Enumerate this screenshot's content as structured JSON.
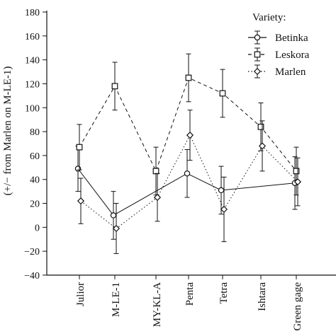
{
  "chart_data": {
    "type": "line",
    "title": "",
    "xlabel": "",
    "ylabel": "(+/− from Marlen on M-LE-1)",
    "categories": [
      "Julior",
      "M-LE-1",
      "MY-KL-A",
      "Penta",
      "Tetra",
      "Ishtara",
      "Green gage"
    ],
    "yticks": [
      -40,
      -20,
      0,
      20,
      40,
      60,
      80,
      100,
      120,
      140,
      160,
      180
    ],
    "ylim": [
      -40,
      180
    ],
    "grid": false,
    "legend": {
      "title": "Variety:",
      "placement": "top-right"
    },
    "series": [
      {
        "name": "Betinka",
        "values": [
          49,
          10,
          null,
          45,
          31,
          null,
          37
        ],
        "errors": [
          19,
          20,
          null,
          20,
          20,
          null,
          22
        ],
        "line_style": "solid",
        "marker": "circle"
      },
      {
        "name": "Leskora",
        "values": [
          67,
          118,
          47,
          125,
          112,
          84,
          47
        ],
        "errors": [
          19,
          20,
          20,
          20,
          20,
          20,
          20
        ],
        "line_style": "dashed",
        "marker": "square"
      },
      {
        "name": "Marlen",
        "values": [
          22,
          -1,
          25,
          77,
          15,
          68,
          38
        ],
        "errors": [
          19,
          21,
          20,
          21,
          27,
          21,
          20
        ],
        "line_style": "dotted",
        "marker": "diamond"
      }
    ]
  }
}
